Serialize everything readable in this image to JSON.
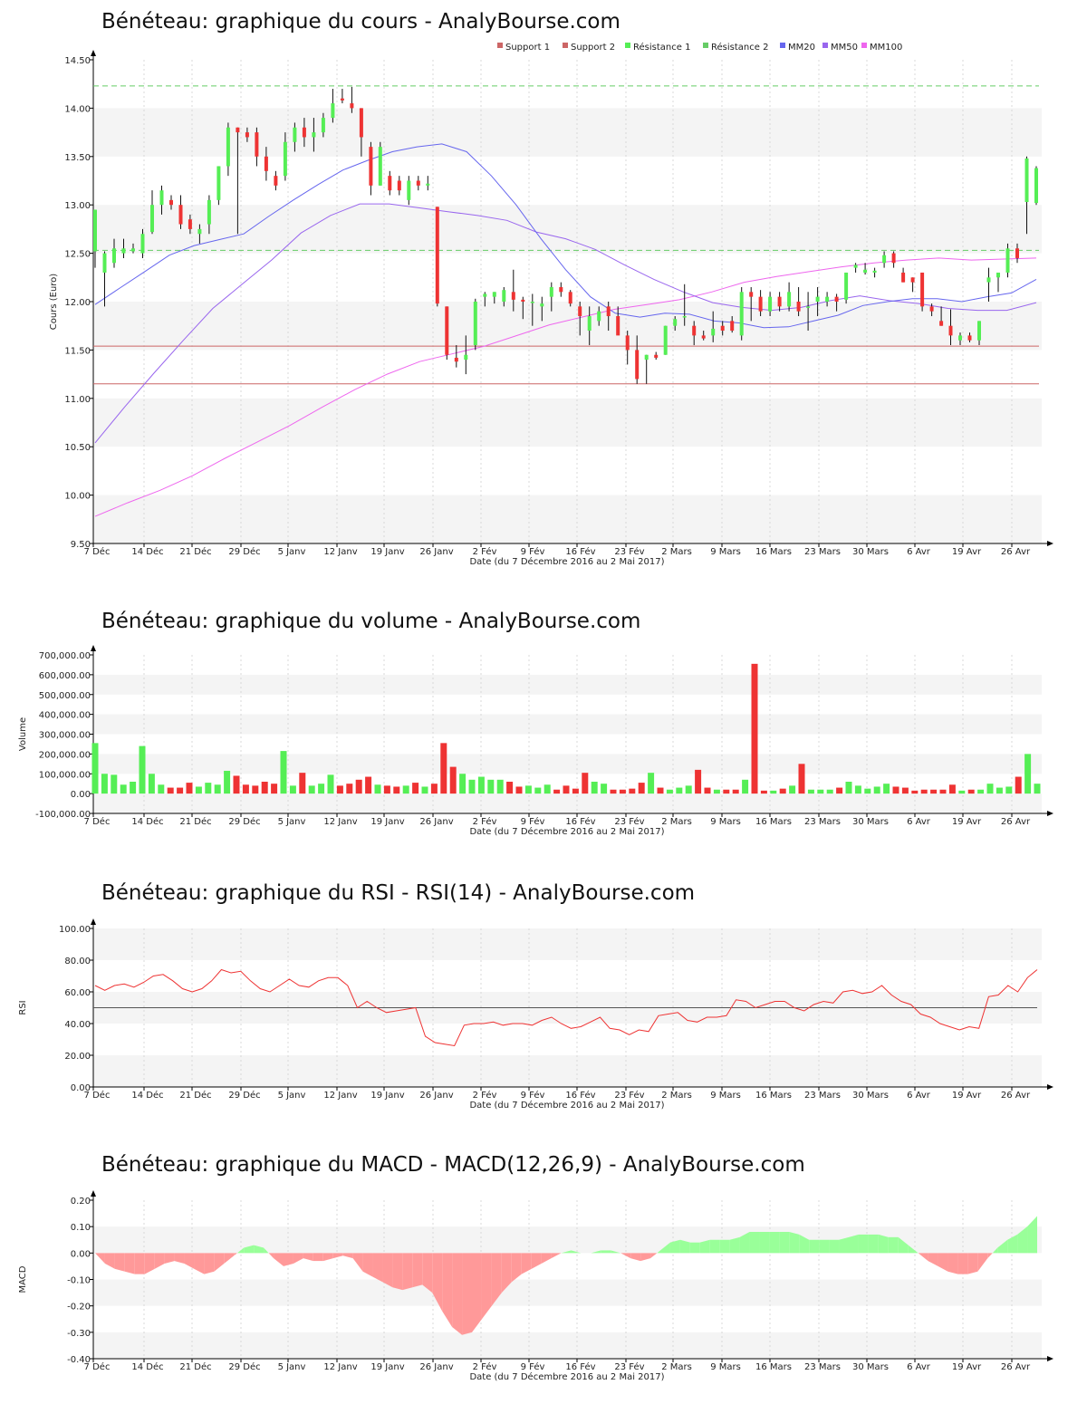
{
  "x_tick_labels": [
    "7 Déc",
    "14 Déc",
    "21 Déc",
    "29 Déc",
    "5 Janv",
    "12 Janv",
    "19 Janv",
    "26 Janv",
    "2 Fév",
    "9 Fév",
    "16 Fév",
    "23 Fév",
    "2 Mars",
    "9 Mars",
    "16 Mars",
    "23 Mars",
    "30 Mars",
    "6 Avr",
    "19 Avr",
    "26 Avr"
  ],
  "x_axis_label": "Date (du 7 Décembre 2016 au 2 Mai 2017)",
  "colors": {
    "up": "#55ee55",
    "down": "#ee3333",
    "support": "#cc6666",
    "resistance": "#66cc66",
    "mm20": "#6666ee",
    "mm50": "#9966ee",
    "mm100": "#ee66ee",
    "rsi": "#ee3333",
    "macd_pos": "#99ff99",
    "macd_neg": "#ff9999",
    "band": "#f4f4f4"
  },
  "chart_data": [
    {
      "type": "candlestick",
      "title": "Bénéteau: graphique du cours - AnalyBourse.com",
      "ylabel": "Cours (Euro)",
      "ylim": [
        9.5,
        14.5
      ],
      "y_ticks": [
        9.5,
        10.0,
        10.5,
        11.0,
        11.5,
        12.0,
        12.5,
        13.0,
        13.5,
        14.0,
        14.5
      ],
      "legend": [
        "Support 1",
        "Support 2",
        "Résistance 1",
        "Résistance 2",
        "MM20",
        "MM50",
        "MM100"
      ],
      "legend_position": "top-right",
      "levels": {
        "support_1": 11.54,
        "support_2": 11.15,
        "resistance_1": 12.53,
        "resistance_2": 14.23
      },
      "ohlc": [
        [
          12.52,
          12.95,
          12.35,
          12.95
        ],
        [
          12.3,
          12.52,
          11.95,
          12.5
        ],
        [
          12.4,
          12.65,
          12.35,
          12.55
        ],
        [
          12.5,
          12.65,
          12.45,
          12.55
        ],
        [
          12.52,
          12.6,
          12.5,
          12.55
        ],
        [
          12.5,
          12.75,
          12.45,
          12.7
        ],
        [
          12.72,
          13.15,
          12.7,
          13.0
        ],
        [
          13.0,
          13.2,
          12.9,
          13.15
        ],
        [
          13.05,
          13.1,
          12.95,
          13.0
        ],
        [
          13.0,
          13.1,
          12.75,
          12.8
        ],
        [
          12.85,
          12.9,
          12.7,
          12.75
        ],
        [
          12.7,
          12.8,
          12.6,
          12.75
        ],
        [
          12.8,
          13.1,
          12.7,
          13.05
        ],
        [
          13.05,
          13.4,
          13.0,
          13.4
        ],
        [
          13.4,
          13.85,
          13.3,
          13.8
        ],
        [
          13.8,
          13.8,
          12.7,
          13.75
        ],
        [
          13.75,
          13.8,
          13.65,
          13.7
        ],
        [
          13.75,
          13.8,
          13.4,
          13.5
        ],
        [
          13.5,
          13.6,
          13.25,
          13.35
        ],
        [
          13.3,
          13.35,
          13.15,
          13.2
        ],
        [
          13.3,
          13.75,
          13.25,
          13.65
        ],
        [
          13.65,
          13.85,
          13.55,
          13.8
        ],
        [
          13.8,
          13.9,
          13.6,
          13.7
        ],
        [
          13.7,
          13.9,
          13.55,
          13.75
        ],
        [
          13.75,
          13.95,
          13.7,
          13.9
        ],
        [
          13.9,
          14.2,
          13.85,
          14.05
        ],
        [
          14.1,
          14.2,
          14.05,
          14.08
        ],
        [
          14.05,
          14.22,
          13.95,
          14.0
        ],
        [
          14.0,
          14.0,
          13.5,
          13.7
        ],
        [
          13.6,
          13.65,
          13.1,
          13.2
        ],
        [
          13.2,
          13.65,
          13.2,
          13.6
        ],
        [
          13.3,
          13.35,
          13.1,
          13.15
        ],
        [
          13.25,
          13.3,
          13.1,
          13.15
        ],
        [
          13.05,
          13.3,
          13.0,
          13.25
        ],
        [
          13.25,
          13.3,
          13.15,
          13.2
        ],
        [
          13.2,
          13.3,
          13.15,
          13.22
        ],
        [
          12.98,
          12.98,
          11.95,
          11.98
        ],
        [
          11.95,
          11.95,
          11.4,
          11.45
        ],
        [
          11.42,
          11.55,
          11.32,
          11.38
        ],
        [
          11.4,
          11.65,
          11.25,
          11.45
        ],
        [
          11.55,
          12.03,
          11.5,
          12.0
        ],
        [
          12.05,
          12.1,
          11.95,
          12.08
        ],
        [
          12.05,
          12.1,
          11.98,
          12.1
        ],
        [
          12.0,
          12.15,
          11.95,
          12.12
        ],
        [
          12.1,
          12.33,
          11.9,
          12.02
        ],
        [
          12.02,
          12.05,
          11.82,
          12.0
        ],
        [
          12.0,
          12.08,
          11.75,
          12.0
        ],
        [
          11.95,
          12.05,
          11.8,
          11.98
        ],
        [
          12.05,
          12.2,
          11.9,
          12.15
        ],
        [
          12.15,
          12.2,
          12.05,
          12.1
        ],
        [
          12.1,
          12.12,
          11.95,
          11.98
        ],
        [
          11.95,
          12.0,
          11.65,
          11.85
        ],
        [
          11.7,
          11.95,
          11.55,
          11.85
        ],
        [
          11.8,
          11.95,
          11.75,
          11.9
        ],
        [
          11.95,
          12.0,
          11.7,
          11.85
        ],
        [
          11.85,
          11.95,
          11.7,
          11.65
        ],
        [
          11.65,
          11.7,
          11.35,
          11.5
        ],
        [
          11.5,
          11.65,
          11.15,
          11.2
        ],
        [
          11.4,
          11.45,
          11.15,
          11.45
        ],
        [
          11.45,
          11.48,
          11.4,
          11.42
        ],
        [
          11.45,
          11.75,
          11.45,
          11.75
        ],
        [
          11.75,
          11.85,
          11.7,
          11.82
        ],
        [
          11.85,
          12.18,
          11.75,
          11.85
        ],
        [
          11.75,
          11.8,
          11.55,
          11.65
        ],
        [
          11.65,
          11.7,
          11.6,
          11.62
        ],
        [
          11.65,
          11.9,
          11.58,
          11.72
        ],
        [
          11.75,
          11.8,
          11.65,
          11.7
        ],
        [
          11.8,
          11.85,
          11.68,
          11.7
        ],
        [
          11.65,
          12.15,
          11.6,
          12.1
        ],
        [
          12.1,
          12.15,
          11.8,
          12.05
        ],
        [
          12.05,
          12.12,
          11.85,
          11.9
        ],
        [
          11.9,
          12.1,
          11.85,
          12.05
        ],
        [
          12.05,
          12.1,
          11.9,
          11.95
        ],
        [
          11.95,
          12.2,
          11.9,
          12.1
        ],
        [
          12.0,
          12.15,
          11.85,
          11.9
        ],
        [
          11.95,
          12.1,
          11.7,
          11.95
        ],
        [
          12.0,
          12.15,
          11.85,
          12.05
        ],
        [
          12.0,
          12.1,
          11.95,
          12.05
        ],
        [
          12.05,
          12.08,
          11.9,
          12.0
        ],
        [
          12.02,
          12.3,
          11.98,
          12.3
        ],
        [
          12.35,
          12.4,
          12.3,
          12.38
        ],
        [
          12.3,
          12.4,
          12.28,
          12.33
        ],
        [
          12.3,
          12.35,
          12.25,
          12.32
        ],
        [
          12.4,
          12.52,
          12.35,
          12.48
        ],
        [
          12.5,
          12.52,
          12.35,
          12.4
        ],
        [
          12.3,
          12.35,
          12.2,
          12.2
        ],
        [
          12.25,
          12.25,
          12.1,
          12.2
        ],
        [
          12.3,
          12.3,
          11.9,
          11.95
        ],
        [
          11.95,
          11.98,
          11.85,
          11.9
        ],
        [
          11.8,
          11.95,
          11.75,
          11.75
        ],
        [
          11.75,
          11.92,
          11.55,
          11.65
        ],
        [
          11.6,
          11.68,
          11.55,
          11.65
        ],
        [
          11.65,
          11.68,
          11.58,
          11.6
        ],
        [
          11.6,
          11.8,
          11.55,
          11.8
        ],
        [
          12.2,
          12.35,
          12.0,
          12.25
        ],
        [
          12.25,
          12.3,
          12.1,
          12.3
        ],
        [
          12.3,
          12.6,
          12.25,
          12.55
        ],
        [
          12.55,
          12.6,
          12.4,
          12.45
        ],
        [
          13.03,
          13.5,
          12.7,
          13.48
        ],
        [
          13.02,
          13.4,
          13.0,
          13.38
        ]
      ],
      "mm20": [
        11.97,
        12.14,
        12.31,
        12.48,
        12.58,
        12.64,
        12.7,
        12.88,
        13.05,
        13.21,
        13.36,
        13.46,
        13.55,
        13.6,
        13.63,
        13.55,
        13.3,
        13.0,
        12.65,
        12.33,
        12.05,
        11.88,
        11.84,
        11.88,
        11.87,
        11.8,
        11.78,
        11.73,
        11.74,
        11.8,
        11.86,
        11.96,
        12.0,
        12.03,
        12.03,
        12.0,
        12.05,
        12.09,
        12.23
      ],
      "mm50": [
        10.54,
        10.91,
        11.26,
        11.6,
        11.93,
        12.18,
        12.43,
        12.71,
        12.89,
        13.01,
        13.01,
        12.97,
        12.93,
        12.89,
        12.84,
        12.72,
        12.65,
        12.54,
        12.38,
        12.23,
        12.1,
        11.99,
        11.94,
        11.91,
        11.94,
        12.01,
        12.06,
        12.01,
        11.98,
        11.93,
        11.91,
        11.91,
        11.99
      ],
      "mm100": [
        9.78,
        9.92,
        10.05,
        10.2,
        10.38,
        10.55,
        10.72,
        10.91,
        11.09,
        11.25,
        11.38,
        11.46,
        11.54,
        11.65,
        11.76,
        11.84,
        11.92,
        11.97,
        12.02,
        12.1,
        12.2,
        12.26,
        12.31,
        12.36,
        12.4,
        12.43,
        12.45,
        12.43,
        12.44,
        12.45
      ]
    },
    {
      "type": "bar",
      "title": "Bénéteau: graphique du volume - AnalyBourse.com",
      "ylabel": "Volume",
      "ylim": [
        -100000,
        700000
      ],
      "y_ticks": [
        -100000,
        0,
        100000,
        200000,
        300000,
        400000,
        500000,
        600000,
        700000
      ],
      "y_tick_labels": [
        "-100,000.00",
        "0.00",
        "100,000.00",
        "200,000.00",
        "300,000.00",
        "400,000.00",
        "500,000.00",
        "600,000.00",
        "700,000.00"
      ],
      "values": [
        255000,
        100000,
        95000,
        45000,
        60000,
        240000,
        100000,
        45000,
        30000,
        30000,
        55000,
        35000,
        55000,
        45000,
        115000,
        90000,
        45000,
        40000,
        60000,
        50000,
        215000,
        40000,
        105000,
        40000,
        50000,
        95000,
        40000,
        50000,
        70000,
        85000,
        45000,
        40000,
        35000,
        40000,
        55000,
        35000,
        50000,
        255000,
        135000,
        100000,
        70000,
        85000,
        70000,
        70000,
        60000,
        35000,
        40000,
        30000,
        45000,
        20000,
        40000,
        25000,
        105000,
        60000,
        50000,
        20000,
        20000,
        25000,
        55000,
        105000,
        30000,
        20000,
        30000,
        40000,
        120000,
        30000,
        20000,
        20000,
        20000,
        70000,
        655000,
        15000,
        15000,
        25000,
        40000,
        150000,
        20000,
        20000,
        20000,
        30000,
        60000,
        40000,
        25000,
        35000,
        50000,
        35000,
        30000,
        15000,
        20000,
        20000,
        20000,
        45000,
        15000,
        20000,
        20000,
        50000,
        30000,
        35000,
        85000,
        200000,
        50000
      ]
    },
    {
      "type": "line",
      "title": "Bénéteau: graphique du RSI - RSI(14) - AnalyBourse.com",
      "ylabel": "RSI",
      "ylim": [
        0,
        100
      ],
      "y_ticks": [
        0,
        20,
        40,
        60,
        80,
        100
      ],
      "y_tick_labels": [
        "0.00",
        "20.00",
        "40.00",
        "60.00",
        "80.00",
        "100.00"
      ],
      "reference_line": 50,
      "values": [
        64,
        61,
        64,
        65,
        63,
        66,
        70,
        71,
        67,
        62,
        60,
        62,
        67,
        74,
        72,
        73,
        67,
        62,
        60,
        64,
        68,
        64,
        63,
        67,
        69,
        69,
        64,
        50,
        54,
        50,
        47,
        48,
        49,
        50,
        32,
        28,
        27,
        26,
        39,
        40,
        40,
        41,
        39,
        40,
        40,
        39,
        42,
        44,
        40,
        37,
        38,
        41,
        44,
        37,
        36,
        33,
        36,
        35,
        45,
        46,
        47,
        42,
        41,
        44,
        44,
        45,
        55,
        54,
        50,
        52,
        54,
        54,
        50,
        48,
        52,
        54,
        53,
        60,
        61,
        59,
        60,
        64,
        58,
        54,
        52,
        46,
        44,
        40,
        38,
        36,
        38,
        37,
        57,
        58,
        64,
        60,
        69,
        74
      ]
    },
    {
      "type": "area",
      "title": "Bénéteau: graphique du MACD - MACD(12,26,9) - AnalyBourse.com",
      "ylabel": "MACD",
      "ylim": [
        -0.4,
        0.2
      ],
      "y_ticks": [
        -0.4,
        -0.3,
        -0.2,
        -0.1,
        0.0,
        0.1,
        0.2
      ],
      "y_tick_labels": [
        "-0.40",
        "-0.30",
        "-0.20",
        "-0.10",
        "0.00",
        "0.10",
        "0.20"
      ],
      "values": [
        0.0,
        -0.04,
        -0.06,
        -0.07,
        -0.08,
        -0.08,
        -0.06,
        -0.04,
        -0.03,
        -0.04,
        -0.06,
        -0.08,
        -0.07,
        -0.04,
        -0.01,
        0.02,
        0.03,
        0.02,
        -0.02,
        -0.05,
        -0.04,
        -0.02,
        -0.03,
        -0.03,
        -0.02,
        -0.01,
        -0.02,
        -0.07,
        -0.09,
        -0.11,
        -0.13,
        -0.14,
        -0.13,
        -0.12,
        -0.15,
        -0.22,
        -0.28,
        -0.31,
        -0.3,
        -0.25,
        -0.2,
        -0.15,
        -0.11,
        -0.08,
        -0.06,
        -0.04,
        -0.02,
        0.0,
        0.01,
        0.0,
        0.0,
        0.01,
        0.01,
        0.0,
        -0.02,
        -0.03,
        -0.02,
        0.01,
        0.04,
        0.05,
        0.04,
        0.04,
        0.05,
        0.05,
        0.05,
        0.06,
        0.08,
        0.08,
        0.08,
        0.08,
        0.08,
        0.07,
        0.05,
        0.05,
        0.05,
        0.05,
        0.06,
        0.07,
        0.07,
        0.07,
        0.06,
        0.06,
        0.03,
        0.0,
        -0.03,
        -0.05,
        -0.07,
        -0.08,
        -0.08,
        -0.07,
        -0.02,
        0.02,
        0.05,
        0.07,
        0.1,
        0.14
      ]
    }
  ]
}
